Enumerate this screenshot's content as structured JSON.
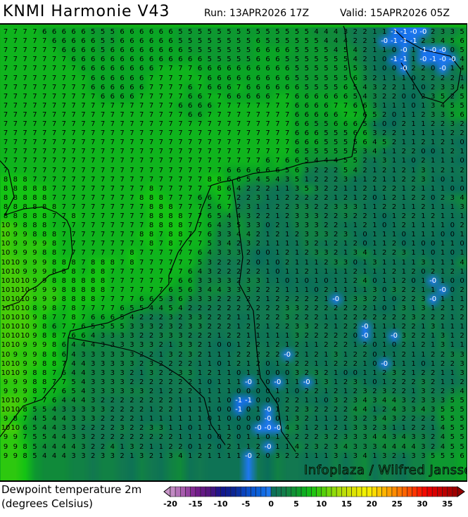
{
  "header": {
    "title": "KNMI Harmonie V43",
    "run": "Run: 13APR2026 17Z",
    "valid": "Valid: 15APR2026 05Z"
  },
  "map": {
    "watermark": "Infoplaza / Wilfred Janssen",
    "grid_rows": [
      "7 7 7 7 6 6 6 6 6 5 5 5 6 6 6 6 6 6 5 5 5 5 5 5 5 5 5 5 5 5 5 5 4 4 4 3 2 2 1 1 -1 -1 -0 -0 2 3 3 5",
      "7 7 7 7 7 6 6 6 6 6 5 5 6 6 6 6 6 6 5 5 5 5 5 5 5 5 6 5 5 5 5 5 5 4 4 4 2 2 1 -0 -1 -1 -1 2 3 4 5 6",
      "7 7 7 7 7 7 6 6 6 6 5 6 6 6 6 6 6 6 6 5 5 5 5 5 5 5 6 6 6 6 5 5 5 5 4 5 4 2 1 1 0 -0 1 -1 -0 -0 0 5",
      "7 7 7 7 7 7 7 6 6 6 6 6 6 6 6 6 6 6 6 6 6 5 5 5 5 5 6 6 6 5 5 5 5 5 5 5 4 2 1 0 -1 -1 1 -0 -1 -0 -0 4",
      "7 7 7 7 7 7 7 7 6 6 6 6 6 6 6 6 7 7 7 7 6 6 6 6 6 6 6 6 6 6 5 5 5 5 5 5 5 3 1 0 0 -0 2 2 0 -0 1 4",
      "7 7 7 7 7 7 7 7 7 6 6 6 6 6 6 7 7 7 7 7 7 6 6 6 6 6 6 6 6 6 5 5 5 5 5 5 6 3 2 1 1 1 0 2 2 2 2 1",
      "7 7 7 7 7 7 7 7 7 6 6 6 6 6 6 7 7 7 7 6 7 6 6 6 7 6 6 6 6 6 6 5 5 5 5 6 5 4 3 2 2 1 1 0 2 3 3 4",
      "7 7 7 7 7 7 7 7 7 7 6 6 6 6 7 7 7 7 7 6 6 7 7 6 6 6 6 6 7 7 6 6 6 6 6 6 5 4 3 2 2 0 0 2 3 5 2 5",
      "7 7 7 7 7 7 7 7 7 7 7 7 7 7 7 7 7 7 6 6 6 6 7 7 7 7 7 7 7 7 6 6 6 6 7 7 6 6 3 1 1 1 0 1 3 4 5 5",
      "7 7 7 7 7 7 7 7 7 7 7 7 7 7 7 7 7 7 7 6 6 7 7 7 7 7 7 7 7 7 6 6 6 6 6 7 7 6 5 2 0 1 1 2 3 3 5 6",
      "7 7 7 7 7 7 7 7 7 7 7 7 7 7 7 7 7 7 7 7 7 7 7 7 7 7 7 7 7 7 6 6 5 5 6 6 6 5 1 0 0 2 1 1 2 2 3 2",
      "7 7 7 7 7 7 7 7 7 7 7 7 7 7 7 7 7 7 7 7 7 7 7 7 7 7 7 7 7 7 6 6 6 5 5 5 6 6 3 2 2 1 1 1 1 1 2 2",
      "7 7 7 7 7 7 7 7 7 7 7 7 7 7 7 7 7 7 7 7 7 7 7 7 7 7 7 7 7 7 6 6 6 5 5 5 5 6 4 5 2 1 1 2 1 2 1 0",
      "7 7 7 7 7 7 7 7 7 7 7 7 7 7 7 7 7 7 7 7 7 7 7 7 7 7 7 7 7 7 6 5 5 5 5 5 5 3 4 1 1 2 2 0 0 1 2 1",
      "7 7 7 7 7 7 7 7 7 7 7 7 7 7 7 7 7 7 7 7 7 7 7 7 7 7 7 6 7 6 6 5 4 4 4 5 5 2 1 3 1 1 0 2 1 1 1 0",
      "7 7 7 7 7 7 7 7 7 7 7 7 7 7 7 7 7 7 7 7 7 7 7 6 6 6 6 6 6 5 6 3 2 2 2 5 4 2 1 2 1 2 1 3 1 2 1 2",
      "8 8 8 7 7 7 7 7 7 7 7 7 7 7 7 7 7 7 7 7 7 8 8 6 6 5 4 5 4 3 5 1 2 2 2 3 1 1 2 1 1 2 2 3 1 0 1 1",
      "8 8 8 8 8 7 7 7 7 7 7 7 7 7 7 8 7 7 7 7 7 7 8 6 4 2 2 2 1 1 3 5 3 2 2 1 1 2 1 2 2 1 2 1 1 1 0 0",
      "8 8 8 8 8 7 7 7 7 7 7 7 7 7 8 8 8 7 7 7 6 6 7 7 2 2 3 1 1 2 2 2 2 2 1 2 1 2 0 1 2 1 2 2 0 2 3 4",
      "8 8 8 8 8 8 7 7 7 7 7 7 7 7 7 8 8 8 7 7 7 5 6 7 2 3 1 1 2 2 3 3 2 2 3 3 3 1 1 2 2 1 1 2 1 1 1 3",
      "8 8 8 8 8 7 7 8 7 7 7 7 7 7 7 8 8 8 8 7 7 6 5 4 4 3 2 2 1 2 3 3 3 2 2 3 2 2 1 0 1 2 2 1 2 1 1 1",
      "10 9 8 8 8 7 7 7 7 7 7 7 7 7 7 8 8 8 8 7 7 6 4 3 5 3 3 0 2 1 3 3 3 2 2 1 1 2 1 0 1 2 1 1 1 1 0 2",
      "10 9 9 8 8 8 7 7 7 7 7 7 7 7 8 8 7 8 8 7 7 6 3 3 4 4 2 1 2 1 2 3 3 3 2 3 1 0 1 1 1 0 1 1 1 0 0 1",
      "10 9 9 9 9 8 7 7 7 7 7 7 7 7 7 8 7 8 7 7 7 5 3 4 2 3 2 1 1 1 1 3 2 1 2 1 2 0 1 1 2 0 1 0 0 1 1 0",
      "10 9 9 9 8 8 7 7 7 7 7 7 7 8 7 7 7 7 7 7 6 4 3 3 3 2 0 0 1 2 1 2 3 3 2 1 3 4 1 2 2 3 1 1 0 1 0 1",
      "10 10 9 9 9 8 8 8 7 8 8 8 7 8 7 7 7 7 7 7 5 3 2 2 2 2 0 1 0 2 1 1 1 2 3 3 0 1 3 1 1 1 1 3 1 1 1 4",
      "10 10 9 9 9 8 8 8 7 8 8 7 7 7 7 7 7 7 7 6 4 3 2 2 2 2 2 1 0 1 1 2 1 1 1 1 2 1 1 1 2 1 2 0 2 1 2 1",
      "10 10 10 9 9 8 8 8 8 8 8 7 7 7 7 7 7 7 6 6 3 3 3 3 2 3 3 1 1 0 1 0 1 0 1 1 2 4 0 1 1 2 0 1 -0 1 0 0",
      "10 10 10 9 9 9 8 8 8 8 8 7 7 7 7 7 7 6 5 6 3 4 4 3 3 3 2 2 2 1 1 1 0 2 1 1 1 1 3 0 3 2 2 1 1 -0 0 2",
      "10 10 10 9 9 9 8 8 8 8 7 7 7 7 6 6 5 3 6 3 3 3 2 2 2 2 2 1 2 2 2 2 2 1 -0 1 3 3 2 1 0 2 2 3 -0 1 1 1",
      "10 10 10 8 9 8 7 8 7 7 7 7 6 5 5 4 4 5 4 2 2 2 2 2 2 2 2 2 2 3 3 2 2 2 2 2 2 2 1 0 1 3 1 3 1 2 1 2",
      "10 10 10 9 8 7 7 8 7 6 6 6 5 4 2 2 2 3 2 3 3 2 2 2 1 1 2 2 2 3 2 2 2 1 1 2 2 2 2 2 2 2 3 2 2 2 1 2",
      "10 10 10 9 8 6 7 7 6 5 5 5 5 3 3 3 2 3 2 3 3 2 2 2 1 2 2 1 2 2 3 3 2 2 1 2 2 -0 1 1 1 2 2 1 3 1 1 1",
      "10 10 10 9 8 8 7 6 6 4 3 3 3 3 2 2 3 3 3 2 2 2 1 2 2 1 1 1 1 1 3 2 2 2 2 2 0 -0 1 1 -0 3 2 2 1 3 1 2",
      "10 10 9 9 9 8 6 4 4 4 3 3 3 3 3 3 2 1 3 3 2 1 0 0 1 2 2 1 2 1 2 1 1 2 2 2 1 2 0 1 0 2 1 2 1 3 1 1",
      "10 9 9 9 8 8 6 4 3 3 3 3 3 3 2 2 1 3 2 3 2 1 1 1 2 2 2 2 2 -0 2 1 2 1 3 1 2 2 0 1 1 2 1 1 2 2 3 3",
      "10 10 9 9 8 8 7 4 4 3 3 3 3 3 2 3 2 2 2 2 1 1 0 1 2 1 2 0 1 2 2 2 1 1 2 2 2 1 0 -0 1 1 1 0 1 2 2 3",
      "10 10 9 8 8 7 6 4 4 3 3 3 3 2 1 3 2 2 3 3 1 2 1 1 0 1 1 0 0 0 3 2 3 2 1 0 0 1 1 2 3 2 1 2 2 1 1 3",
      "9 9 9 8 8 7 7 5 4 3 3 3 3 2 2 2 2 2 2 2 1 0 1 1 1 -0 1 0 -0 1 1 -0 1 3 1 2 3 1 0 1 2 2 2 3 2 1 1 2",
      "9 9 9 8 7 7 6 5 4 3 3 3 3 3 3 2 1 2 2 2 1 1 1 1 0 0 0 0 1 1 0 2 2 1 2 1 2 3 2 3 2 2 1 3 2 2 3 4",
      "10 10 9 7 7 6 4 4 4 3 2 2 2 2 2 2 2 2 1 1 1 1 1 0 -1 -1 0 0 0 2 2 1 1 0 3 2 3 4 3 4 4 3 2 3 3 3 5 5",
      "10 10 8 5 5 4 3 3 3 3 3 2 2 2 2 1 2 2 1 1 1 1 0 0 -1 0 1 -0 1 2 2 3 2 2 2 2 4 4 1 2 4 3 3 4 3 5 5 5",
      "9 8 7 4 5 4 4 3 3 3 2 2 2 2 1 1 1 1 1 1 1 0 1 0 0 0 0 -0 0 1 3 2 1 1 1 2 3 2 3 4 3 2 2 2 2 5 5 5",
      "10 10 6 5 4 4 3 3 2 2 2 2 3 2 2 3 3 1 1 0 1 1 1 1 0 0 -0 -0 -0 4 3 1 2 1 2 1 3 3 2 3 1 1 2 2 1 4 5 5",
      "9 9 7 5 5 4 4 3 3 2 2 2 2 2 2 2 2 2 1 1 1 0 0 2 0 1 1 0 1 2 2 2 2 3 2 3 3 3 4 4 3 4 3 3 2 4 5 5",
      "9 9 8 5 4 4 4 4 3 2 2 4 1 3 2 1 1 2 2 0 1 2 0 2 1 1 2 -0 1 1 4 2 3 2 3 4 3 3 3 4 4 4 4 3 2 4 5 5",
      "9 9 8 5 4 4 4 3 3 2 3 3 2 1 3 2 1 3 4 1 2 1 1 1 1 -0 2 0 3 2 2 1 1 1 3 1 3 4 1 3 2 1 3 3 5 5 5 6"
    ],
    "coastline_color": "#000000",
    "negative_text_color": "#ffffff"
  },
  "legend": {
    "label_line1": "Dewpoint temperature 2m",
    "label_line2": "(degrees Celsius)",
    "min": -20,
    "max": 37,
    "step": 1,
    "tick_labels": [
      "-20",
      "-15",
      "-10",
      "-5",
      "0",
      "5",
      "10",
      "15",
      "20",
      "25",
      "30",
      "35"
    ],
    "colormap": [
      {
        "v": -20,
        "c": "#c896c8"
      },
      {
        "v": -17,
        "c": "#a050a8"
      },
      {
        "v": -15,
        "c": "#781e8c"
      },
      {
        "v": -12,
        "c": "#50147e"
      },
      {
        "v": -10,
        "c": "#14148c"
      },
      {
        "v": -7,
        "c": "#0a2896"
      },
      {
        "v": -5,
        "c": "#0a4bc8"
      },
      {
        "v": -2,
        "c": "#0a64dc"
      },
      {
        "v": -0.5,
        "c": "#1e78f0"
      },
      {
        "v": 0,
        "c": "#0a6e5a"
      },
      {
        "v": 2,
        "c": "#127850"
      },
      {
        "v": 4,
        "c": "#108a3a"
      },
      {
        "v": 6,
        "c": "#0aa525"
      },
      {
        "v": 8,
        "c": "#14c314"
      },
      {
        "v": 10,
        "c": "#46cc0a"
      },
      {
        "v": 12,
        "c": "#82dc0a"
      },
      {
        "v": 14,
        "c": "#b4dc0a"
      },
      {
        "v": 17,
        "c": "#e6e600"
      },
      {
        "v": 19,
        "c": "#f5f500"
      },
      {
        "v": 21,
        "c": "#ffd200"
      },
      {
        "v": 23,
        "c": "#ffaa00"
      },
      {
        "v": 25,
        "c": "#ff8200"
      },
      {
        "v": 27,
        "c": "#ff5a00"
      },
      {
        "v": 29,
        "c": "#ff2800"
      },
      {
        "v": 31,
        "c": "#f00000"
      },
      {
        "v": 33,
        "c": "#d20000"
      },
      {
        "v": 35,
        "c": "#b40000"
      },
      {
        "v": 37,
        "c": "#960000"
      }
    ]
  }
}
